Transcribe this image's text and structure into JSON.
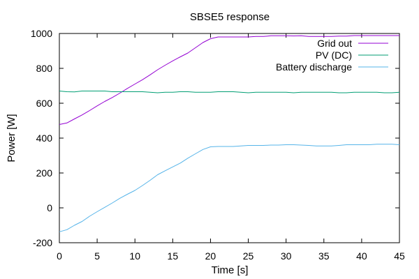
{
  "chart_data": {
    "type": "line",
    "title": "SBSE5 response",
    "xlabel": "Time [s]",
    "ylabel": "Power [W]",
    "xlim": [
      0,
      45
    ],
    "ylim": [
      -200,
      1000
    ],
    "xticks": [
      0,
      5,
      10,
      15,
      20,
      25,
      30,
      35,
      40,
      45
    ],
    "yticks": [
      -200,
      0,
      200,
      400,
      600,
      800,
      1000
    ],
    "grid": false,
    "legend_position": "top-right",
    "series": [
      {
        "name": "Grid out",
        "color": "#9400d3",
        "x": [
          0,
          1,
          2,
          3,
          4,
          5,
          6,
          7,
          8,
          9,
          10,
          11,
          12,
          13,
          14,
          15,
          16,
          17,
          18,
          19,
          20,
          21,
          22,
          23,
          24,
          25,
          26,
          27,
          28,
          29,
          30,
          31,
          32,
          33,
          34,
          35,
          36,
          37,
          38,
          39,
          40,
          41,
          42,
          43,
          44,
          45
        ],
        "values": [
          478,
          487,
          510,
          533,
          558,
          585,
          610,
          633,
          658,
          685,
          710,
          735,
          763,
          792,
          818,
          843,
          866,
          888,
          918,
          948,
          970,
          980,
          980,
          980,
          980,
          980,
          983,
          983,
          987,
          987,
          987,
          986,
          987,
          983,
          983,
          983,
          983,
          985,
          985,
          988,
          988,
          988,
          988,
          988,
          988,
          988
        ]
      },
      {
        "name": "PV (DC)",
        "color": "#009e73",
        "x": [
          0,
          1,
          2,
          3,
          4,
          5,
          6,
          7,
          8,
          9,
          10,
          11,
          12,
          13,
          14,
          15,
          16,
          17,
          18,
          19,
          20,
          21,
          22,
          23,
          24,
          25,
          26,
          27,
          28,
          29,
          30,
          31,
          32,
          33,
          34,
          35,
          36,
          37,
          38,
          39,
          40,
          41,
          42,
          43,
          44,
          45
        ],
        "values": [
          670,
          666,
          665,
          670,
          670,
          670,
          670,
          666,
          666,
          666,
          666,
          666,
          663,
          660,
          663,
          663,
          666,
          666,
          663,
          663,
          663,
          666,
          666,
          666,
          663,
          660,
          663,
          663,
          663,
          663,
          663,
          660,
          663,
          663,
          663,
          663,
          663,
          660,
          660,
          663,
          663,
          663,
          663,
          660,
          660,
          663
        ]
      },
      {
        "name": "Battery discharge",
        "color": "#56b4e9",
        "x": [
          0,
          1,
          2,
          3,
          4,
          5,
          6,
          7,
          8,
          9,
          10,
          11,
          12,
          13,
          14,
          15,
          16,
          17,
          18,
          19,
          20,
          21,
          22,
          23,
          24,
          25,
          26,
          27,
          28,
          29,
          30,
          31,
          32,
          33,
          34,
          35,
          36,
          37,
          38,
          39,
          40,
          41,
          42,
          43,
          44,
          45
        ],
        "values": [
          -137,
          -125,
          -100,
          -78,
          -48,
          -22,
          3,
          28,
          55,
          78,
          100,
          128,
          158,
          190,
          213,
          235,
          257,
          285,
          310,
          335,
          350,
          352,
          352,
          352,
          355,
          358,
          358,
          358,
          360,
          360,
          362,
          362,
          360,
          358,
          355,
          355,
          355,
          358,
          362,
          362,
          362,
          362,
          365,
          365,
          365,
          362
        ]
      }
    ]
  }
}
